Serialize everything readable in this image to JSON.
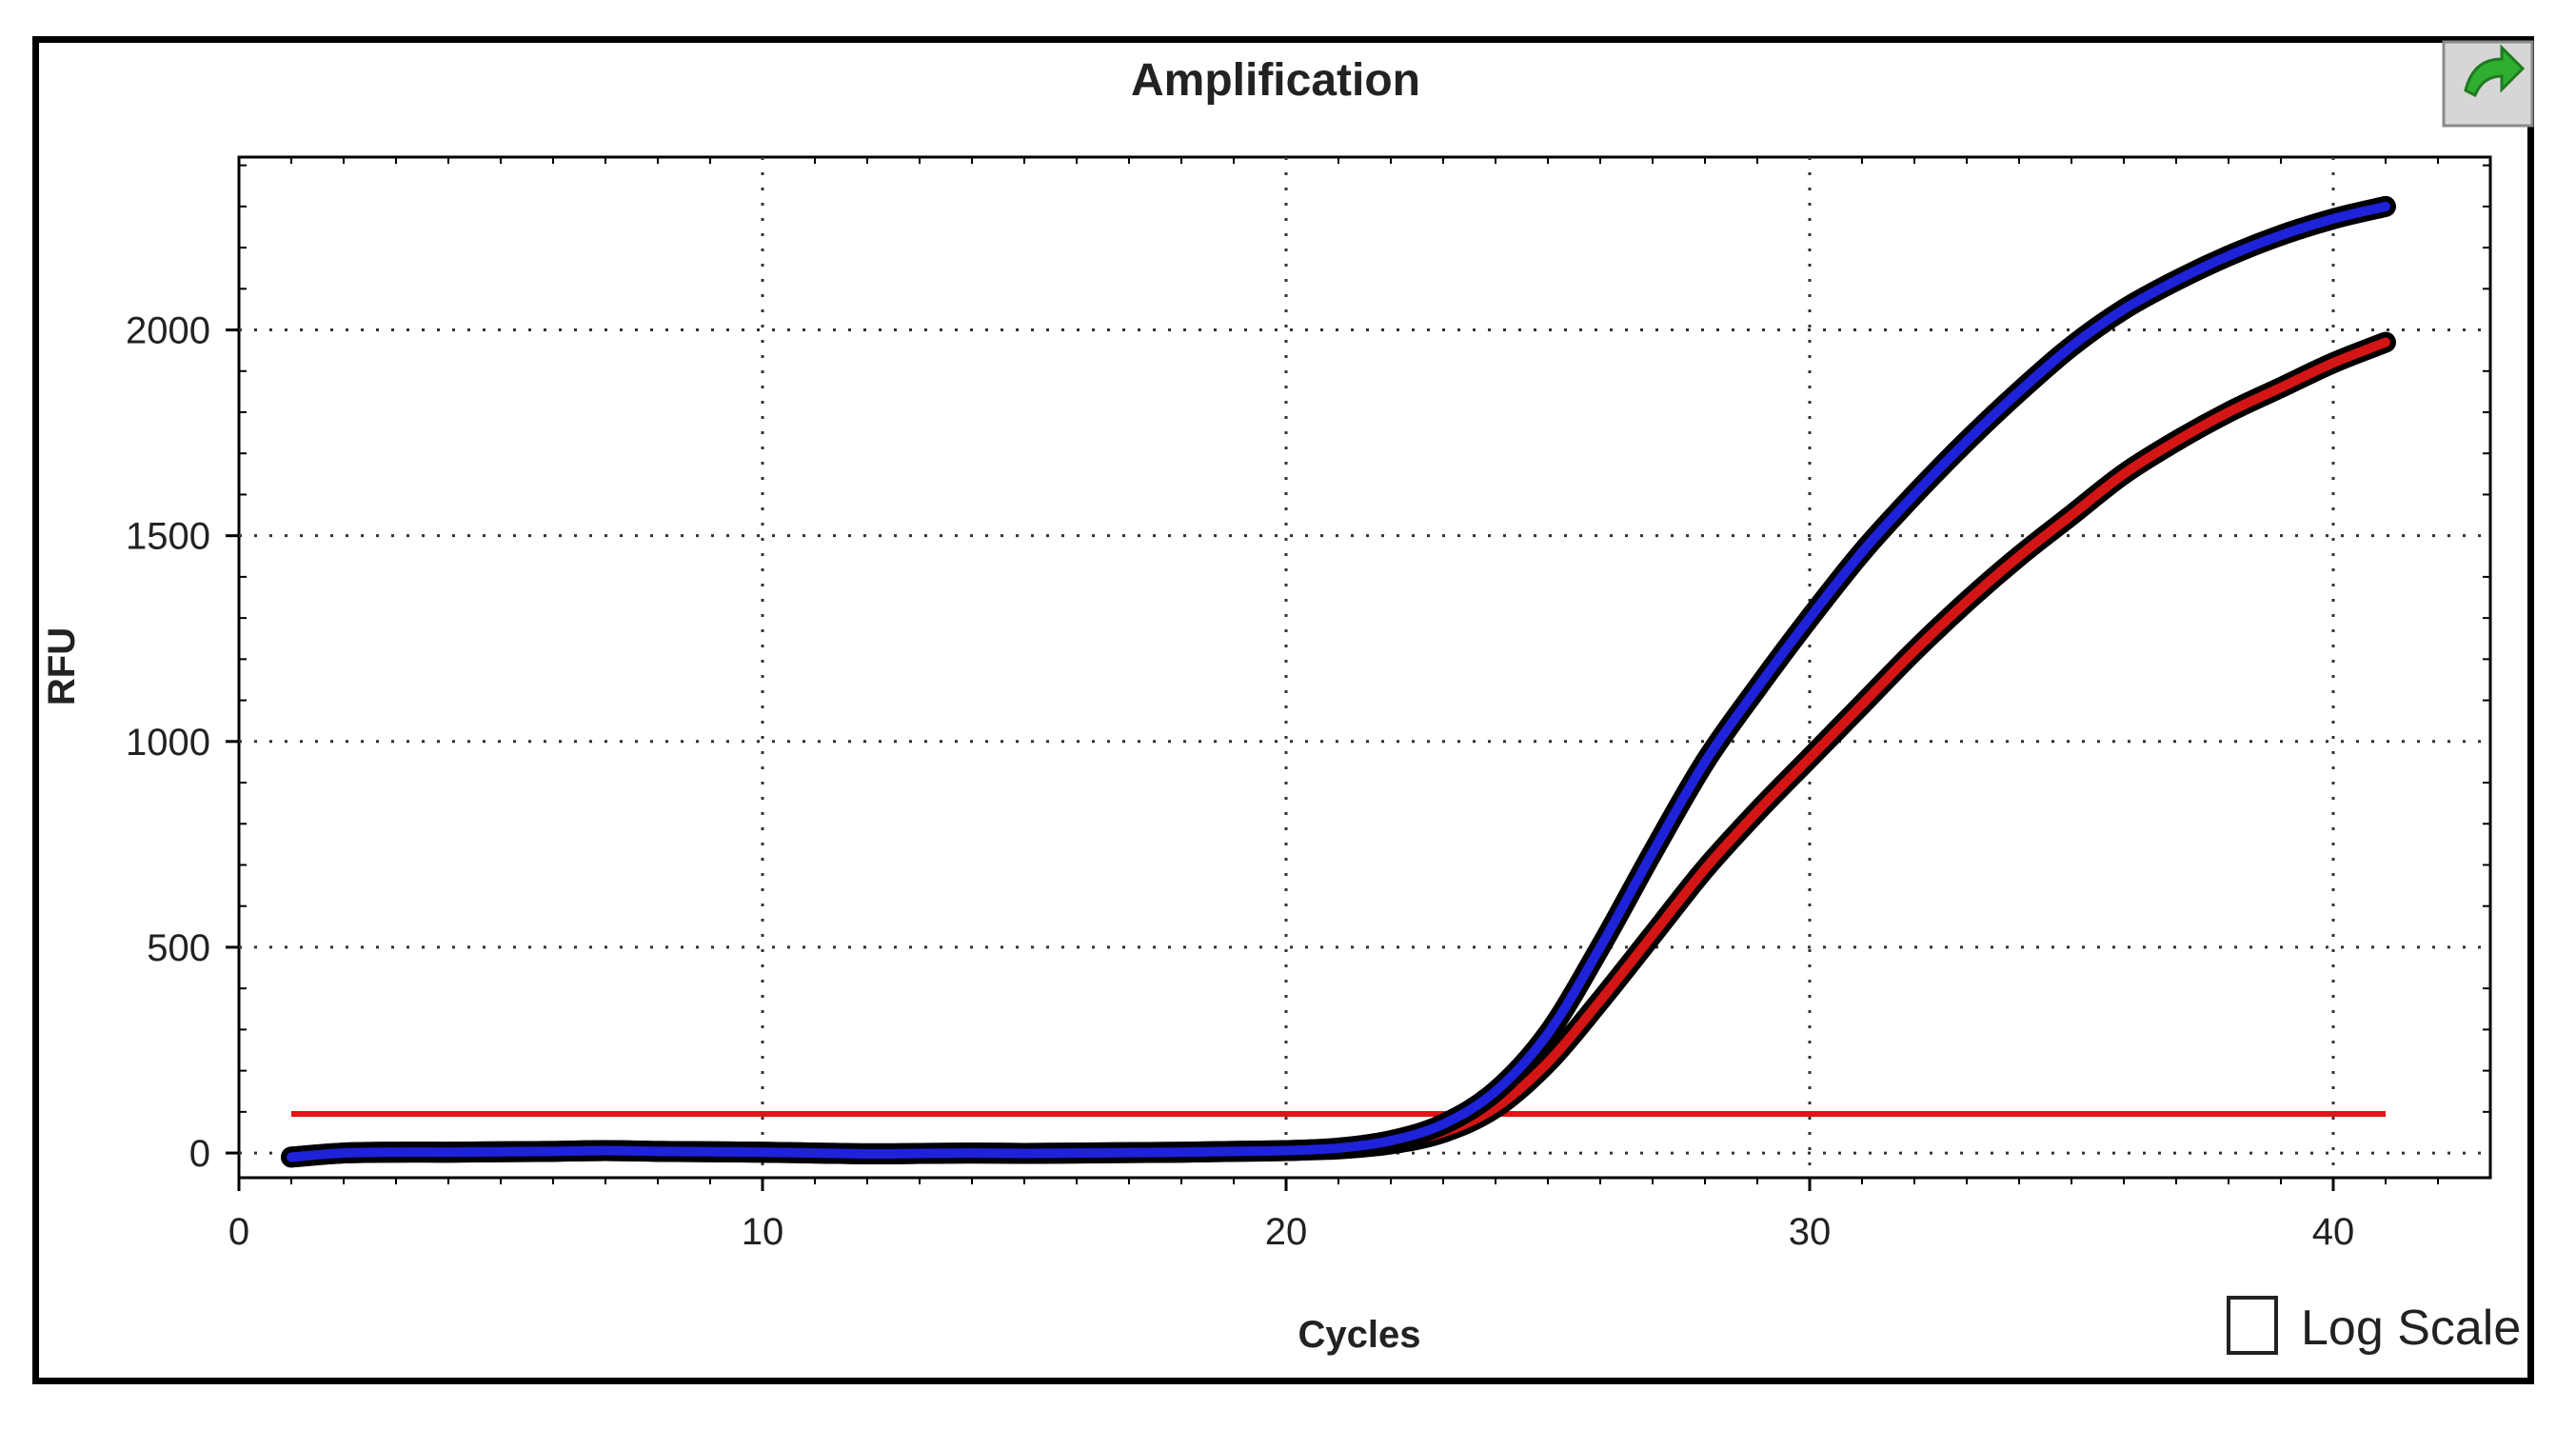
{
  "chart_data": {
    "type": "line",
    "title": "Amplification",
    "xlabel": "Cycles",
    "ylabel": "RFU",
    "xlim": [
      0,
      43
    ],
    "ylim": [
      -60,
      2420
    ],
    "x_ticks": [
      0,
      10,
      20,
      30,
      40
    ],
    "y_ticks": [
      0,
      500,
      1000,
      1500,
      2000
    ],
    "grid": true,
    "threshold": 95,
    "series": [
      {
        "color": "#1e22d8",
        "x": [
          1,
          2,
          3,
          4,
          5,
          6,
          7,
          8,
          9,
          10,
          11,
          12,
          13,
          14,
          15,
          16,
          17,
          18,
          19,
          20,
          21,
          22,
          23,
          24,
          25,
          26,
          27,
          28,
          29,
          30,
          31,
          32,
          33,
          34,
          35,
          36,
          37,
          38,
          39,
          40,
          41
        ],
        "y": [
          -10,
          0,
          2,
          2,
          3,
          4,
          6,
          4,
          3,
          2,
          0,
          -2,
          -1,
          0,
          -1,
          0,
          1,
          2,
          4,
          6,
          12,
          30,
          70,
          150,
          290,
          500,
          730,
          950,
          1130,
          1300,
          1460,
          1600,
          1730,
          1850,
          1960,
          2050,
          2120,
          2180,
          2230,
          2270,
          2300
        ]
      },
      {
        "color": "#d41515",
        "x": [
          1,
          2,
          3,
          4,
          5,
          6,
          7,
          8,
          9,
          10,
          11,
          12,
          13,
          14,
          15,
          16,
          17,
          18,
          19,
          20,
          21,
          22,
          23,
          24,
          25,
          26,
          27,
          28,
          29,
          30,
          31,
          32,
          33,
          34,
          35,
          36,
          37,
          38,
          39,
          40,
          41
        ],
        "y": [
          -10,
          0,
          2,
          2,
          3,
          4,
          6,
          4,
          3,
          2,
          0,
          -2,
          -1,
          0,
          -1,
          0,
          1,
          2,
          4,
          6,
          10,
          22,
          50,
          110,
          220,
          370,
          530,
          690,
          830,
          960,
          1090,
          1220,
          1340,
          1450,
          1550,
          1650,
          1730,
          1800,
          1860,
          1920,
          1970
        ]
      }
    ]
  },
  "controls": {
    "log_scale_label": "Log Scale",
    "log_scale_checked": false,
    "export_icon": "green-arrow-icon"
  }
}
